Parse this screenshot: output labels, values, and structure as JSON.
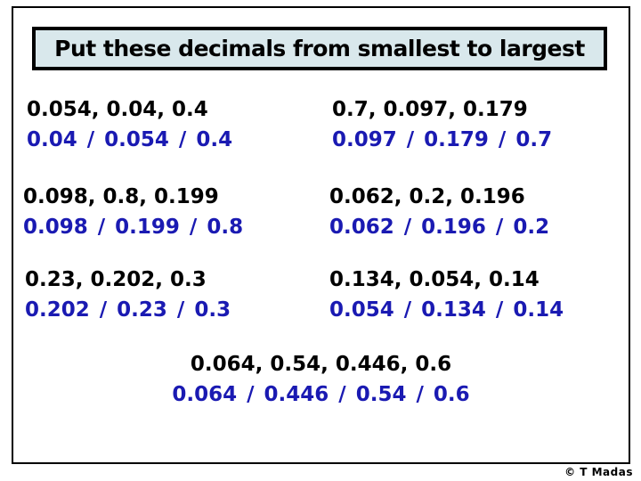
{
  "title": "Put these decimals from smallest to largest",
  "problems": [
    {
      "question": "0.054, 0.04, 0.4",
      "answer": "0.04 / 0.054 / 0.4"
    },
    {
      "question": "0.7, 0.097, 0.179",
      "answer": "0.097 / 0.179 / 0.7"
    },
    {
      "question": "0.098, 0.8, 0.199",
      "answer": "0.098 / 0.199 / 0.8"
    },
    {
      "question": "0.062, 0.2, 0.196",
      "answer": "0.062 / 0.196 / 0.2"
    },
    {
      "question": "0.23, 0.202, 0.3",
      "answer": "0.202 / 0.23 / 0.3"
    },
    {
      "question": "0.134, 0.054, 0.14",
      "answer": "0.054 / 0.134 / 0.14"
    },
    {
      "question": "0.064, 0.54, 0.446, 0.6",
      "answer": "0.064 / 0.446 / 0.54 / 0.6"
    }
  ],
  "credit": "© T Madas",
  "colors": {
    "answer_blue": "#1a1ab2",
    "title_bg": "#d9e8ec",
    "frame_border": "#000000",
    "question_black": "#000000"
  }
}
